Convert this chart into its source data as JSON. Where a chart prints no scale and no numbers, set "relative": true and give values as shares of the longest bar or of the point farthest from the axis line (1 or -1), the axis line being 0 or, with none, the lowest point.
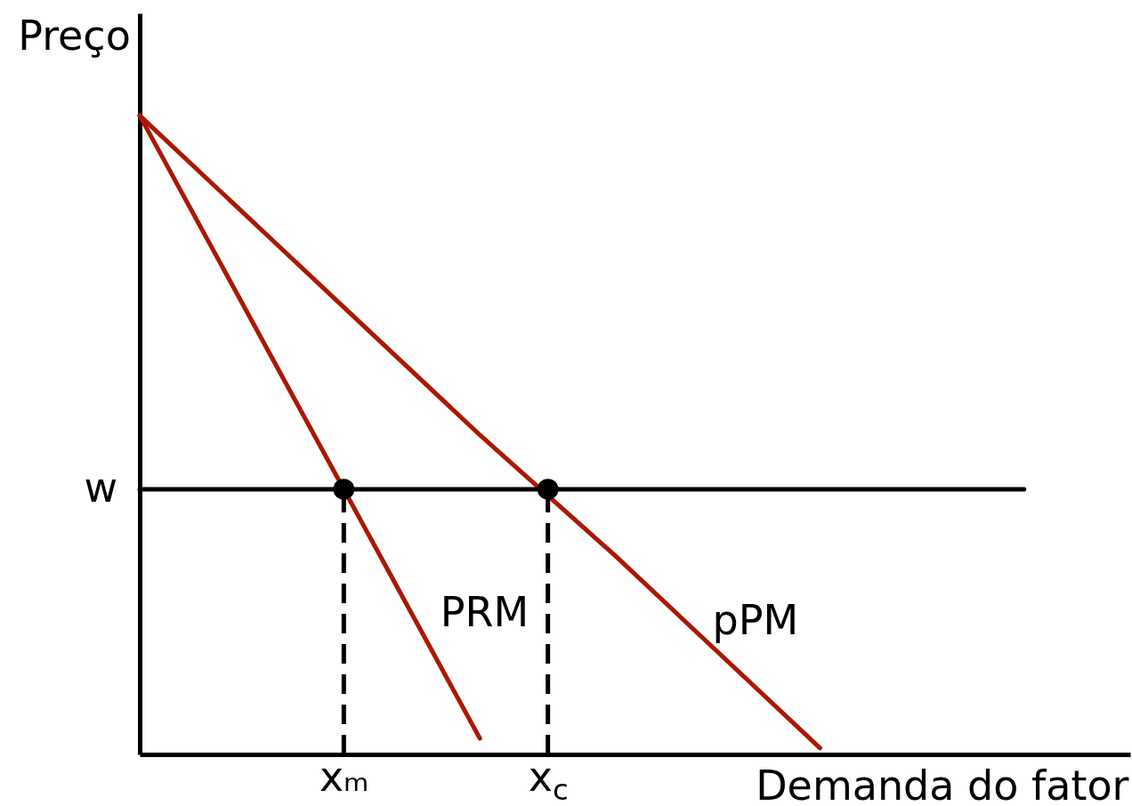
{
  "chart_data": {
    "type": "line",
    "relative": true,
    "xlabel": "Demanda do fator",
    "ylabel": "Preço",
    "categories": [
      null,
      null,
      null,
      "xₘ",
      null,
      null,
      "x$_{c}$",
      null,
      null,
      null,
      null,
      null,
      null,
      null
    ],
    "series": [
      {
        "name": "PRM",
        "color": "#aa1800",
        "values": [
          1,
          0.805,
          0.61,
          null,
          0.22,
          0.025,
          null,
          null,
          null,
          null,
          null,
          null,
          null,
          null
        ]
      },
      {
        "name": "pPM",
        "color": "#aa1800",
        "values": [
          1,
          0.9,
          0.8,
          0.7,
          0.6,
          0.5,
          null,
          0.31,
          0.21,
          0.11,
          0.01,
          null,
          null,
          null
        ]
      },
      {
        "name": "w",
        "color": "#000000",
        "values": [
          0.415,
          0.415,
          0.415,
          0.415,
          0.415,
          0.415,
          0.415,
          0.415,
          0.415,
          0.415,
          0.415,
          0.415,
          0.415,
          0.415
        ]
      },
      {
        "color": "#000000",
        "line_style": "dashed",
        "x": [
          "xₘ",
          "xₘ"
        ],
        "values": [
          0,
          0.415
        ]
      },
      {
        "color": "#000000",
        "line_style": "dashed",
        "x": [
          "x$_{c}$",
          "x$_{c}$"
        ],
        "values": [
          0,
          0.415
        ]
      },
      {
        "type": "scatter",
        "color": "#000000",
        "marker": "circle",
        "x": [
          "xₘ",
          "x$_{c}$"
        ],
        "values": [
          0.415,
          0.415
        ]
      }
    ],
    "grid": false
  }
}
